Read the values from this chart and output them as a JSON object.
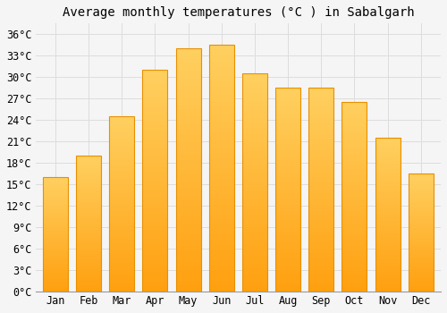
{
  "title": "Average monthly temperatures (°C ) in Sabalgarh",
  "months": [
    "Jan",
    "Feb",
    "Mar",
    "Apr",
    "May",
    "Jun",
    "Jul",
    "Aug",
    "Sep",
    "Oct",
    "Nov",
    "Dec"
  ],
  "values": [
    16,
    19,
    24.5,
    31,
    34,
    34.5,
    30.5,
    28.5,
    28.5,
    26.5,
    21.5,
    16.5
  ],
  "bar_color_top": "#FFD060",
  "bar_color_bottom": "#FFA010",
  "bar_edge_color": "#E89000",
  "background_color": "#F5F5F5",
  "grid_color": "#DDDDDD",
  "yticks": [
    0,
    3,
    6,
    9,
    12,
    15,
    18,
    21,
    24,
    27,
    30,
    33,
    36
  ],
  "ylim": [
    0,
    37.5
  ],
  "title_fontsize": 10,
  "tick_fontsize": 8.5,
  "font_family": "monospace"
}
